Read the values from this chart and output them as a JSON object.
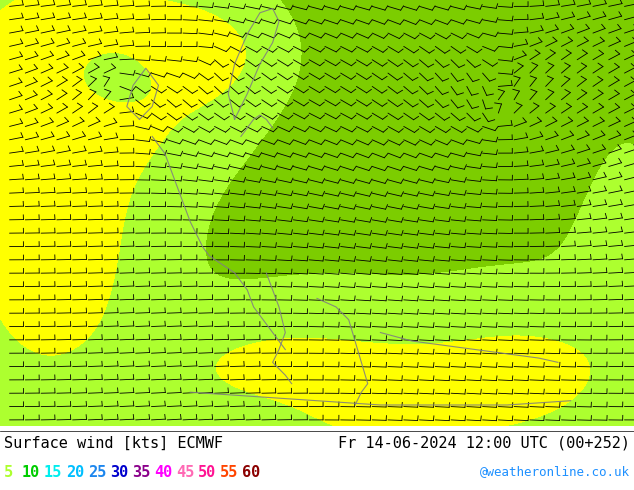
{
  "title_left": "Surface wind [kts] ECMWF",
  "title_right": "Fr 14-06-2024 12:00 UTC (00+252)",
  "credit": "@weatheronline.co.uk",
  "legend_values": [
    "5",
    "10",
    "15",
    "20",
    "25",
    "30",
    "35",
    "40",
    "45",
    "50",
    "55",
    "60"
  ],
  "legend_colors": [
    "#adff2f",
    "#00cd00",
    "#00eeee",
    "#00bfff",
    "#1c86ee",
    "#0000cd",
    "#8b008b",
    "#ff00ff",
    "#ff69b4",
    "#ff1493",
    "#ff4500",
    "#8b0000"
  ],
  "wind_speed_levels": [
    0,
    5,
    10,
    15,
    20,
    25,
    30,
    35,
    40,
    45,
    50,
    55,
    60,
    100
  ],
  "wind_speed_colors": [
    "#ffff00",
    "#ffff00",
    "#adff2f",
    "#7ccd00",
    "#00eeee",
    "#00bfff",
    "#1c86ee",
    "#0000cd",
    "#8b008b",
    "#ff00ff",
    "#ff69b4",
    "#ff1493",
    "#8b0000"
  ],
  "font_size_title": 11,
  "font_size_legend": 11,
  "font_size_credit": 9
}
